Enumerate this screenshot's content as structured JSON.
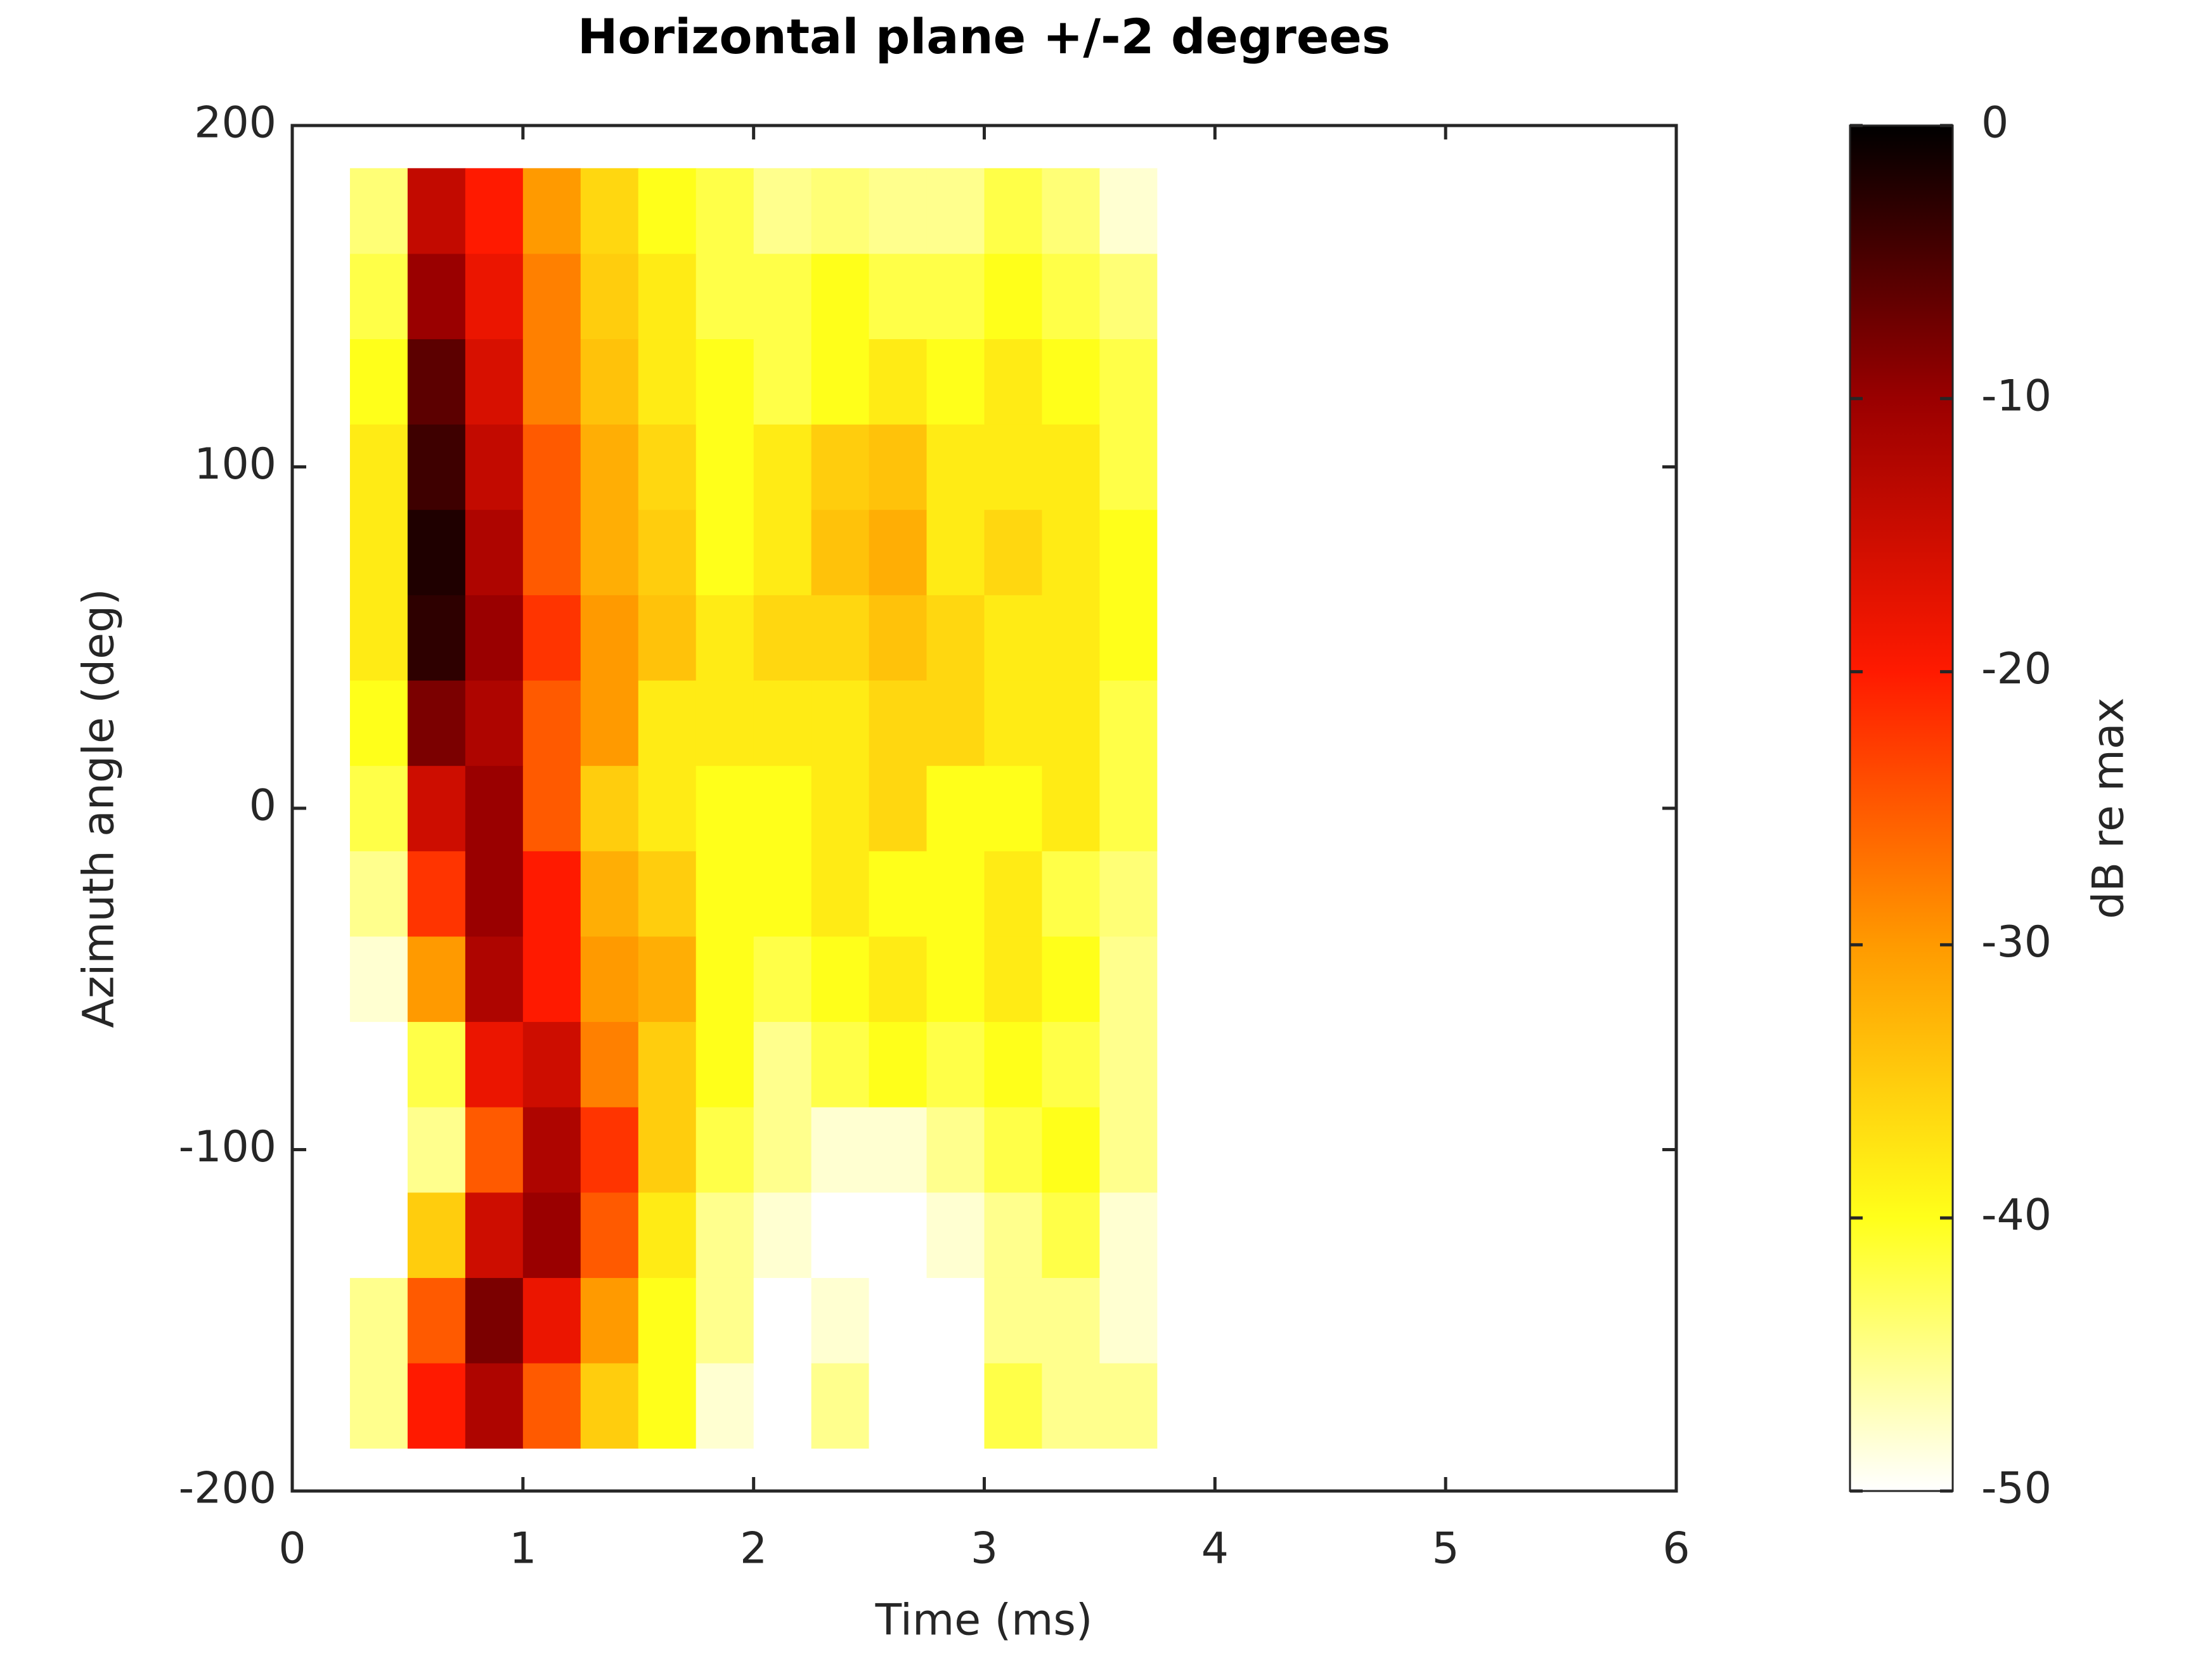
{
  "chart_data": {
    "type": "heatmap",
    "title": "Horizontal plane +/-2 degrees",
    "x_label": "Time (ms)",
    "y_label": "Azimuth angle (deg)",
    "colorbar_label": "dB re max",
    "x": [
      0.125,
      0.375,
      0.625,
      0.875,
      1.125,
      1.375,
      1.625,
      1.875,
      2.125,
      2.375,
      2.625,
      2.875,
      3.125,
      3.375,
      3.625,
      3.875
    ],
    "y": [
      -175,
      -150,
      -125,
      -100,
      -75,
      -50,
      -25,
      0,
      25,
      50,
      75,
      100,
      125,
      150,
      175
    ],
    "z": [
      [
        -50,
        -45,
        -20,
        -12,
        -25,
        -35,
        -40,
        -48,
        -50,
        -45,
        -50,
        -50,
        -42,
        -45,
        -45,
        -50
      ],
      [
        -50,
        -45,
        -25,
        -8,
        -18,
        -30,
        -40,
        -45,
        -50,
        -48,
        -50,
        -50,
        -45,
        -45,
        -48,
        -50
      ],
      [
        -50,
        -50,
        -35,
        -15,
        -10,
        -25,
        -38,
        -45,
        -48,
        -50,
        -50,
        -48,
        -45,
        -42,
        -48,
        -50
      ],
      [
        -50,
        -50,
        -45,
        -25,
        -12,
        -22,
        -35,
        -42,
        -45,
        -48,
        -48,
        -45,
        -42,
        -40,
        -45,
        -50
      ],
      [
        -50,
        -50,
        -42,
        -18,
        -15,
        -28,
        -35,
        -40,
        -45,
        -42,
        -40,
        -42,
        -40,
        -42,
        -45,
        -50
      ],
      [
        -50,
        -48,
        -30,
        -12,
        -20,
        -30,
        -32,
        -40,
        -42,
        -40,
        -38,
        -40,
        -38,
        -40,
        -45,
        -50
      ],
      [
        -50,
        -45,
        -22,
        -10,
        -20,
        -32,
        -35,
        -40,
        -40,
        -38,
        -40,
        -40,
        -38,
        -42,
        -44,
        -50
      ],
      [
        -50,
        -42,
        -15,
        -10,
        -25,
        -35,
        -38,
        -40,
        -40,
        -38,
        -36,
        -40,
        -40,
        -38,
        -42,
        -50
      ],
      [
        -50,
        -40,
        -8,
        -12,
        -25,
        -30,
        -38,
        -38,
        -38,
        -38,
        -36,
        -36,
        -38,
        -38,
        -42,
        -50
      ],
      [
        -50,
        -38,
        -3,
        -10,
        -22,
        -30,
        -34,
        -38,
        -36,
        -36,
        -34,
        -36,
        -38,
        -38,
        -40,
        -50
      ],
      [
        -50,
        -38,
        -2,
        -12,
        -25,
        -32,
        -35,
        -40,
        -38,
        -34,
        -32,
        -38,
        -36,
        -38,
        -40,
        -50
      ],
      [
        -50,
        -38,
        -4,
        -14,
        -25,
        -32,
        -36,
        -40,
        -38,
        -35,
        -34,
        -38,
        -38,
        -38,
        -42,
        -50
      ],
      [
        -50,
        -40,
        -6,
        -16,
        -28,
        -34,
        -38,
        -40,
        -42,
        -40,
        -38,
        -40,
        -38,
        -40,
        -42,
        -50
      ],
      [
        -50,
        -42,
        -10,
        -18,
        -28,
        -35,
        -38,
        -42,
        -42,
        -40,
        -42,
        -42,
        -40,
        -42,
        -44,
        -50
      ],
      [
        -50,
        -44,
        -14,
        -20,
        -30,
        -36,
        -40,
        -42,
        -45,
        -44,
        -45,
        -45,
        -42,
        -44,
        -48,
        -50
      ]
    ],
    "xlim": [
      0,
      6
    ],
    "xticks": [
      0,
      1,
      2,
      3,
      4,
      5,
      6
    ],
    "ylim": [
      -200,
      200
    ],
    "yticks": [
      -200,
      -100,
      0,
      100,
      200
    ],
    "clim": [
      -50,
      0
    ],
    "cticks": [
      -50,
      -40,
      -30,
      -20,
      -10,
      0
    ],
    "colormap": [
      "#ffffff",
      "#ffff1a",
      "#ff9a00",
      "#ff1a00",
      "#9a0000",
      "#000000"
    ]
  }
}
